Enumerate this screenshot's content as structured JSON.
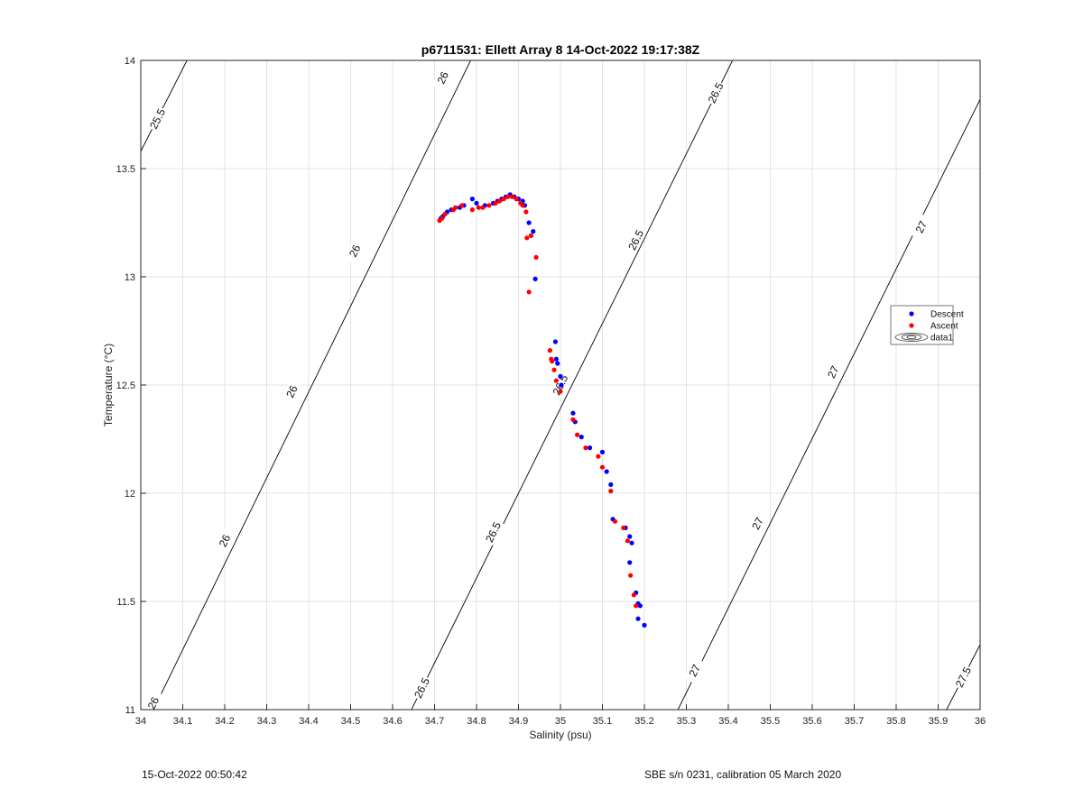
{
  "chart_data": {
    "type": "scatter",
    "title": "p6711531: Ellett Array 8 14-Oct-2022 19:17:38Z",
    "xlabel": "Salinity (psu)",
    "ylabel": "Temperature (°C)",
    "xlim": [
      34,
      36
    ],
    "ylim": [
      11,
      14
    ],
    "xticks": [
      "34",
      "34.1",
      "34.2",
      "34.3",
      "34.4",
      "34.5",
      "34.6",
      "34.7",
      "34.8",
      "34.9",
      "35",
      "35.1",
      "35.2",
      "35.3",
      "35.4",
      "35.5",
      "35.6",
      "35.7",
      "35.8",
      "35.9",
      "36"
    ],
    "yticks": [
      "11",
      "11.5",
      "12",
      "12.5",
      "13",
      "13.5",
      "14"
    ],
    "grid": true,
    "legend_placement": "right",
    "series": [
      {
        "name": "Descent",
        "color": "#0000ff",
        "points": [
          [
            34.715,
            13.27
          ],
          [
            34.72,
            13.28
          ],
          [
            34.73,
            13.3
          ],
          [
            34.74,
            13.31
          ],
          [
            34.76,
            13.32
          ],
          [
            34.77,
            13.33
          ],
          [
            34.79,
            13.36
          ],
          [
            34.8,
            13.34
          ],
          [
            34.82,
            13.33
          ],
          [
            34.84,
            13.34
          ],
          [
            34.85,
            13.35
          ],
          [
            34.86,
            13.36
          ],
          [
            34.87,
            13.37
          ],
          [
            34.88,
            13.38
          ],
          [
            34.89,
            13.37
          ],
          [
            34.9,
            13.36
          ],
          [
            34.91,
            13.35
          ],
          [
            34.915,
            13.33
          ],
          [
            34.925,
            13.25
          ],
          [
            34.935,
            13.21
          ],
          [
            34.94,
            12.99
          ],
          [
            34.988,
            12.7
          ],
          [
            34.99,
            12.62
          ],
          [
            34.993,
            12.6
          ],
          [
            35.0,
            12.54
          ],
          [
            35.002,
            12.5
          ],
          [
            35.03,
            12.37
          ],
          [
            35.035,
            12.33
          ],
          [
            35.05,
            12.26
          ],
          [
            35.07,
            12.21
          ],
          [
            35.1,
            12.19
          ],
          [
            35.11,
            12.1
          ],
          [
            35.12,
            12.04
          ],
          [
            35.125,
            11.88
          ],
          [
            35.155,
            11.84
          ],
          [
            35.165,
            11.8
          ],
          [
            35.17,
            11.77
          ],
          [
            35.165,
            11.68
          ],
          [
            35.18,
            11.54
          ],
          [
            35.185,
            11.49
          ],
          [
            35.19,
            11.48
          ],
          [
            35.185,
            11.42
          ],
          [
            35.2,
            11.39
          ]
        ]
      },
      {
        "name": "Ascent",
        "color": "#ff0000",
        "points": [
          [
            34.712,
            13.26
          ],
          [
            34.718,
            13.27
          ],
          [
            34.725,
            13.29
          ],
          [
            34.745,
            13.31
          ],
          [
            34.75,
            13.32
          ],
          [
            34.765,
            13.33
          ],
          [
            34.79,
            13.31
          ],
          [
            34.805,
            13.32
          ],
          [
            34.815,
            13.32
          ],
          [
            34.83,
            13.33
          ],
          [
            34.845,
            13.34
          ],
          [
            34.855,
            13.35
          ],
          [
            34.865,
            13.36
          ],
          [
            34.875,
            13.37
          ],
          [
            34.885,
            13.37
          ],
          [
            34.895,
            13.36
          ],
          [
            34.905,
            13.34
          ],
          [
            34.91,
            13.33
          ],
          [
            34.918,
            13.3
          ],
          [
            34.92,
            13.18
          ],
          [
            34.93,
            13.19
          ],
          [
            34.942,
            13.09
          ],
          [
            34.925,
            12.93
          ],
          [
            34.975,
            12.66
          ],
          [
            34.978,
            12.62
          ],
          [
            34.98,
            12.61
          ],
          [
            34.985,
            12.57
          ],
          [
            34.99,
            12.52
          ],
          [
            35.0,
            12.47
          ],
          [
            35.03,
            12.34
          ],
          [
            35.04,
            12.27
          ],
          [
            35.06,
            12.21
          ],
          [
            35.09,
            12.17
          ],
          [
            35.1,
            12.12
          ],
          [
            35.12,
            12.01
          ],
          [
            35.13,
            11.87
          ],
          [
            35.15,
            11.84
          ],
          [
            35.16,
            11.78
          ],
          [
            35.167,
            11.62
          ],
          [
            35.175,
            11.53
          ],
          [
            35.18,
            11.48
          ]
        ]
      }
    ],
    "contours": [
      {
        "level": "25.5",
        "points": [
          [
            34.0,
            13.58
          ],
          [
            34.11,
            14.0
          ]
        ],
        "labels": [
          {
            "text": "25.5",
            "s": 34.04,
            "t": 13.73
          }
        ]
      },
      {
        "level": "26",
        "points": [
          [
            34.0,
            10.88
          ],
          [
            34.786,
            14.0
          ]
        ],
        "labels": [
          {
            "text": "26",
            "s": 34.03,
            "t": 11.03
          },
          {
            "text": "26",
            "s": 34.2,
            "t": 11.78
          },
          {
            "text": "26",
            "s": 34.36,
            "t": 12.47
          },
          {
            "text": "26",
            "s": 34.51,
            "t": 13.12
          },
          {
            "text": "26",
            "s": 34.72,
            "t": 13.92
          }
        ]
      },
      {
        "level": "26.5",
        "points": [
          [
            34.645,
            11.0
          ],
          [
            35.41,
            14.0
          ]
        ],
        "labels": [
          {
            "text": "26.5",
            "s": 34.67,
            "t": 11.1
          },
          {
            "text": "26.5",
            "s": 34.84,
            "t": 11.82
          },
          {
            "text": "26.5",
            "s": 35.0,
            "t": 12.5
          },
          {
            "text": "26.5",
            "s": 35.18,
            "t": 13.17
          },
          {
            "text": "26.5",
            "s": 35.37,
            "t": 13.85
          }
        ]
      },
      {
        "level": "27",
        "points": [
          [
            35.28,
            11.0
          ],
          [
            36.0,
            13.82
          ]
        ],
        "labels": [
          {
            "text": "27",
            "s": 35.32,
            "t": 11.18
          },
          {
            "text": "27",
            "s": 35.47,
            "t": 11.86
          },
          {
            "text": "27",
            "s": 35.65,
            "t": 12.56
          },
          {
            "text": "27",
            "s": 35.86,
            "t": 13.23
          }
        ]
      },
      {
        "level": "27.5",
        "points": [
          [
            35.92,
            11.0
          ],
          [
            36.0,
            11.3
          ]
        ],
        "labels": [
          {
            "text": "27.5",
            "s": 35.96,
            "t": 11.15
          }
        ]
      }
    ],
    "legend": {
      "entries": [
        {
          "label": "Descent",
          "marker": "dot",
          "color": "#0000ff"
        },
        {
          "label": "Ascent",
          "marker": "dot",
          "color": "#ff0000"
        },
        {
          "label": "data1",
          "marker": "contour-ellipses",
          "color": "#000000"
        }
      ]
    }
  },
  "footer": {
    "left": "15-Oct-2022 00:50:42",
    "right": "SBE s/n 0231, calibration 05 March 2020"
  }
}
